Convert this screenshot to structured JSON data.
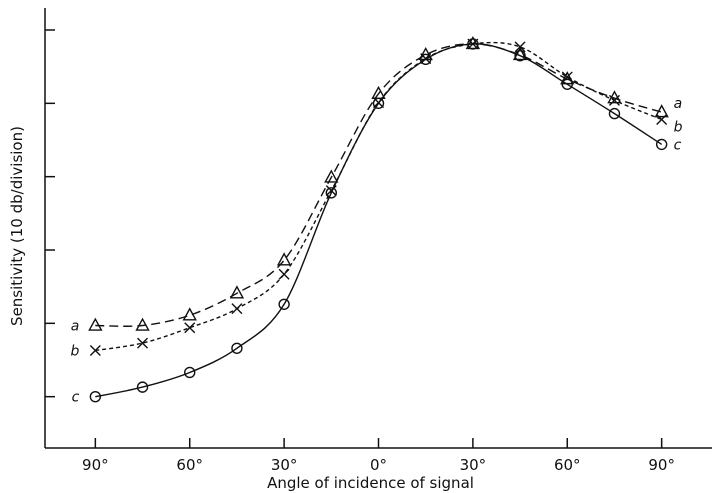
{
  "chart_data": {
    "type": "line",
    "title": "",
    "xlabel": "Angle of incidence of signal",
    "ylabel": "Sensitivity (10 db/division)",
    "x": [
      -90,
      -75,
      -60,
      -45,
      -30,
      -15,
      0,
      15,
      30,
      45,
      60,
      75,
      90
    ],
    "xticks": [
      -90,
      -60,
      -30,
      0,
      30,
      60,
      90
    ],
    "xtick_labels": [
      "90°",
      "60°",
      "30°",
      "0°",
      "30°",
      "60°",
      "90°"
    ],
    "xlim": [
      -106,
      106
    ],
    "ylim": [
      0,
      6
    ],
    "yticks": [
      0.7,
      1.7,
      2.7,
      3.7,
      4.7,
      5.7
    ],
    "ytick_labels": [
      "",
      "",
      "",
      "",
      "",
      ""
    ],
    "grid": false,
    "series": [
      {
        "name": "a",
        "line_style": "long-dash",
        "marker": "triangle",
        "values": [
          1.67,
          1.67,
          1.81,
          2.11,
          2.56,
          3.69,
          4.83,
          5.36,
          5.51,
          5.36,
          5.03,
          4.77,
          4.58
        ]
      },
      {
        "name": "b",
        "line_style": "short-dash",
        "marker": "cross",
        "values": [
          1.33,
          1.43,
          1.64,
          1.9,
          2.37,
          3.51,
          4.71,
          5.31,
          5.51,
          5.47,
          5.06,
          4.74,
          4.48
        ]
      },
      {
        "name": "c",
        "line_style": "solid",
        "marker": "circle",
        "values": [
          0.7,
          0.83,
          1.03,
          1.36,
          1.96,
          3.48,
          4.7,
          5.3,
          5.51,
          5.35,
          4.96,
          4.56,
          4.14
        ]
      }
    ]
  }
}
